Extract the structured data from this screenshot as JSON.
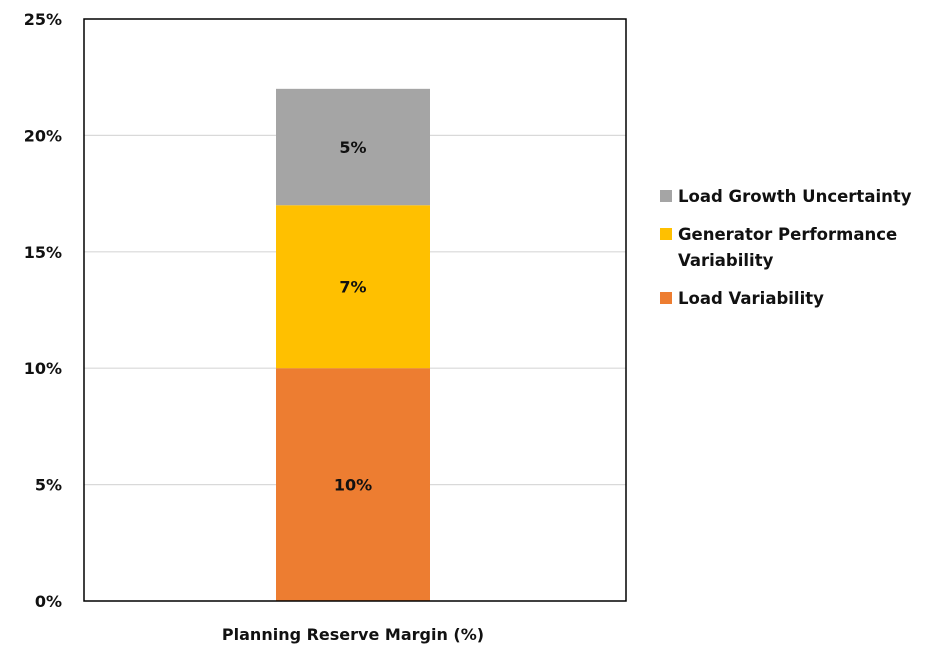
{
  "chart_data": {
    "type": "bar",
    "stacked": true,
    "categories": [
      "Planning Reserve Margin (%)"
    ],
    "series": [
      {
        "name": "Load Variability",
        "values": [
          10
        ],
        "color": "#ED7D31",
        "label": "10%"
      },
      {
        "name": "Generator Performance Variability",
        "values": [
          7
        ],
        "color": "#FFC000",
        "label": "7%"
      },
      {
        "name": "Load Growth Uncertainty",
        "values": [
          5
        ],
        "color": "#A5A5A5",
        "label": "5%"
      }
    ],
    "ylim": [
      0,
      25
    ],
    "yticks": [
      0,
      5,
      10,
      15,
      20,
      25
    ],
    "ytick_labels": [
      "0%",
      "5%",
      "10%",
      "15%",
      "20%",
      "25%"
    ],
    "grid": true,
    "legend_position": "right",
    "legend_order": [
      "Load Growth Uncertainty",
      "Generator Performance Variability",
      "Load Variability"
    ],
    "title": "",
    "xlabel": "",
    "ylabel": ""
  }
}
